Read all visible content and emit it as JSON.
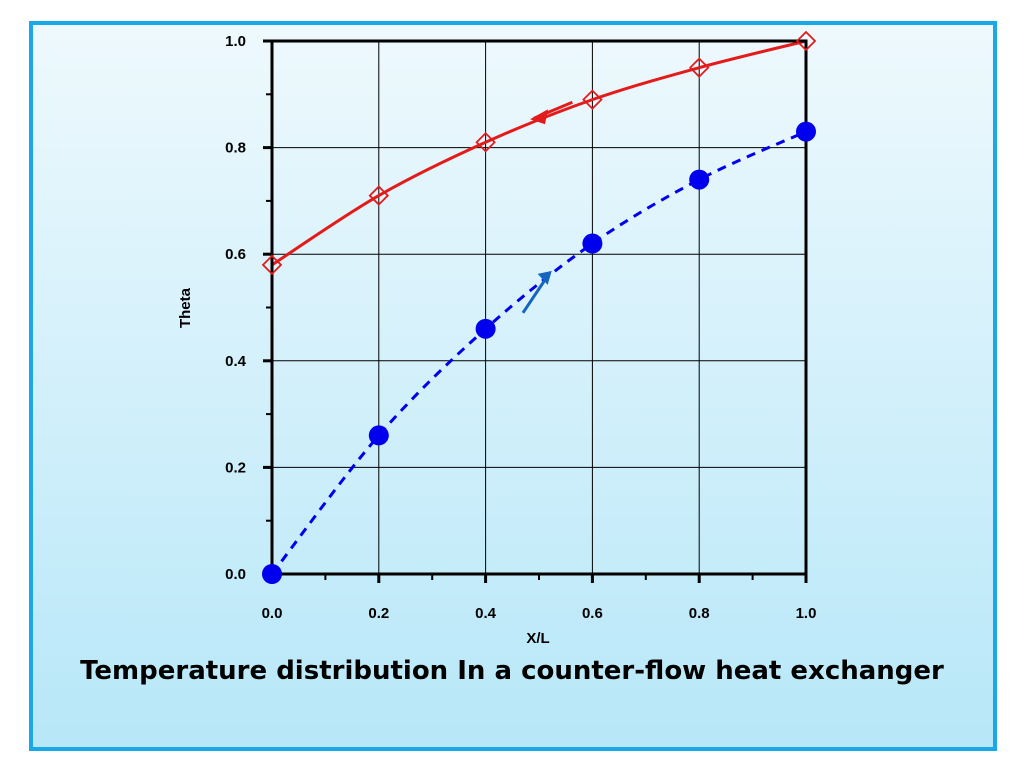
{
  "caption": "Temperature distribution In a counter-flow heat exchanger",
  "colors": {
    "frame_border": "#1aa8e8",
    "background_top": "#eef9fd",
    "background_bottom": "#b7e7f8",
    "hot_fluid": "#e31b1b",
    "cold_fluid": "#0000ee",
    "cold_arrow": "#1565c0"
  },
  "chart_data": {
    "type": "line",
    "xlabel": "X/L",
    "ylabel": "Theta",
    "xlim": [
      0,
      1
    ],
    "ylim": [
      0,
      1
    ],
    "grid": true,
    "x_ticks": [
      "0.0",
      "0.2",
      "0.4",
      "0.6",
      "0.8",
      "1.0"
    ],
    "y_ticks": [
      "0.0",
      "0.2",
      "0.4",
      "0.6",
      "0.8",
      "1.0"
    ],
    "series": [
      {
        "line_style": "solid",
        "marker": "open-diamond",
        "color": "#e31b1b",
        "flow_direction": "right-to-left",
        "x": [
          0.0,
          0.2,
          0.4,
          0.6,
          0.8,
          1.0
        ],
        "y": [
          0.58,
          0.71,
          0.81,
          0.89,
          0.95,
          1.0
        ]
      },
      {
        "line_style": "dashed",
        "marker": "filled-circle",
        "color": "#0000ee",
        "flow_direction": "left-to-right",
        "x": [
          0.0,
          0.2,
          0.4,
          0.6,
          0.8,
          1.0
        ],
        "y": [
          0.0,
          0.26,
          0.46,
          0.62,
          0.74,
          0.83
        ]
      }
    ]
  }
}
